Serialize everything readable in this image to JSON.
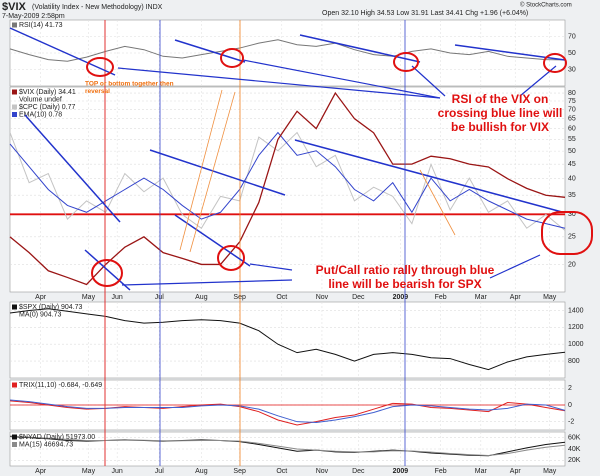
{
  "header": {
    "symbol": "$VIX",
    "description": "(Volatility Index - New Methodology) INDX",
    "date": "7-May-2009 2:58pm",
    "ohlc": "Open 32.10 High 34.53 Low 31.91 Last 34.41 Chg +1.96 (+6.04%)",
    "credit": "© StockCharts.com",
    "annotations": [
      {
        "lines": [
          "TOP or bottom together then",
          "reversal"
        ],
        "color": "#f07010"
      },
      {
        "lines": [
          "RSI of the VIX on",
          "crossing blue line will",
          "be bullish for VIX"
        ],
        "color": "#e01010"
      },
      {
        "lines": [
          "Put/Call ratio rally through blue",
          "line will be bearish for SPX"
        ],
        "color": "#e01010"
      }
    ]
  },
  "chart_data": [
    {
      "type": "line",
      "xlim": [
        0,
        29
      ],
      "ylim": [
        10,
        90
      ],
      "yticks": [
        70,
        50,
        30
      ],
      "grid": true,
      "series": [
        {
          "name": "RSI(14) 41.73",
          "color": "#777777",
          "values": [
            55,
            48,
            42,
            40,
            45,
            52,
            58,
            54,
            46,
            44,
            48,
            52,
            56,
            62,
            66,
            60,
            58,
            62,
            54,
            48,
            46,
            52,
            55,
            50,
            48,
            52,
            46,
            44,
            42,
            41.73
          ]
        }
      ]
    },
    {
      "type": "line",
      "log": true,
      "xlim": [
        0,
        29
      ],
      "ylim": [
        16,
        84
      ],
      "yticks": [
        80,
        75,
        70,
        65,
        60,
        55,
        50,
        45,
        40,
        35,
        30,
        25,
        20
      ],
      "grid": true,
      "hline": 30,
      "hline_color": "#e01010",
      "y2lim": [
        0.5,
        1.4
      ],
      "volume_label": "Volume undef",
      "xticks": [
        {
          "value": 1.6,
          "label": "Apr"
        },
        {
          "value": 4.1,
          "label": "May"
        },
        {
          "value": 5.6,
          "label": "Jun"
        },
        {
          "value": 7.8,
          "label": "Jul"
        },
        {
          "value": 10,
          "label": "Aug"
        },
        {
          "value": 12,
          "label": "Sep"
        },
        {
          "value": 14.2,
          "label": "Oct"
        },
        {
          "value": 16.3,
          "label": "Nov"
        },
        {
          "value": 18.2,
          "label": "Dec"
        },
        {
          "value": 20.4,
          "label": "2009"
        },
        {
          "value": 22.5,
          "label": "Feb"
        },
        {
          "value": 24.6,
          "label": "Mar"
        },
        {
          "value": 26.4,
          "label": "Apr"
        },
        {
          "value": 28.2,
          "label": "May"
        }
      ],
      "series": [
        {
          "name": "$CPC (Daily) 0.77",
          "color": "#c4c4c4",
          "axis": "y2",
          "values": [
            1.2,
            0.98,
            1.02,
            0.82,
            0.9,
            0.85,
            1.02,
            0.94,
            1.0,
            0.84,
            0.78,
            0.92,
            0.9,
            1.18,
            1.12,
            1.2,
            1.05,
            1.1,
            0.9,
            0.96,
            0.92,
            0.8,
            1.06,
            0.86,
            1.0,
            0.85,
            0.9,
            0.78,
            0.84,
            0.77
          ]
        },
        {
          "name": "EMA(10) 0.78",
          "color": "#3344cc",
          "axis": "y2",
          "values": [
            1.15,
            1.05,
            0.95,
            0.88,
            0.85,
            0.9,
            0.95,
            1.0,
            0.95,
            0.88,
            0.82,
            0.85,
            0.95,
            1.1,
            1.2,
            1.1,
            1.12,
            1.05,
            0.95,
            0.9,
            0.98,
            0.85,
            1.0,
            0.9,
            0.95,
            0.9,
            0.86,
            0.82,
            0.8,
            0.78
          ]
        },
        {
          "name": "$VIX (Daily) 34.41",
          "color": "#9a1515",
          "values": [
            25,
            22,
            19,
            18,
            17,
            20,
            23,
            25,
            22,
            21,
            20,
            20,
            24,
            33,
            55,
            69,
            60,
            80,
            65,
            58,
            45,
            45,
            48,
            47,
            45,
            44,
            40,
            37,
            35,
            34.41
          ]
        }
      ]
    },
    {
      "type": "line",
      "xlim": [
        0,
        29
      ],
      "ylim": [
        600,
        1500
      ],
      "yticks": [
        1400,
        1200,
        1000,
        800
      ],
      "grid": true,
      "ma_label": "MA(0) 904.73",
      "series": [
        {
          "name": "$SPX (Daily) 904.73",
          "color": "#111111",
          "values": [
            1370,
            1400,
            1420,
            1390,
            1360,
            1330,
            1280,
            1250,
            1260,
            1280,
            1290,
            1280,
            1250,
            1160,
            1000,
            900,
            940,
            880,
            800,
            880,
            900,
            880,
            840,
            830,
            760,
            700,
            790,
            850,
            880,
            904.73
          ]
        }
      ]
    },
    {
      "type": "line",
      "xlim": [
        0,
        29
      ],
      "ylim": [
        -3,
        3
      ],
      "yticks": [
        2,
        0,
        -2
      ],
      "grid": true,
      "hline": 0,
      "hline_color": "#e01010",
      "series": [
        {
          "name": "TRIX(11,10) -0.684, -0.649",
          "color": "#e02020",
          "values": [
            0.5,
            0.3,
            0,
            -0.3,
            -0.5,
            -0.4,
            -0.2,
            -0.3,
            -0.4,
            -0.2,
            0,
            0.1,
            -0.2,
            -0.8,
            -1.8,
            -2.4,
            -2.0,
            -1.5,
            -1.2,
            -0.5,
            0.2,
            0.1,
            -0.3,
            -0.4,
            -0.6,
            -0.8,
            0.3,
            0.1,
            -0.3,
            -0.684
          ]
        },
        {
          "color": "#4060d0",
          "values": [
            0.6,
            0.4,
            0.1,
            -0.2,
            -0.4,
            -0.4,
            -0.3,
            -0.3,
            -0.3,
            -0.3,
            -0.1,
            0,
            -0.1,
            -0.5,
            -1.3,
            -2.0,
            -2.1,
            -1.8,
            -1.4,
            -0.9,
            -0.2,
            0,
            -0.1,
            -0.3,
            -0.5,
            -0.6,
            -0.4,
            0.1,
            0,
            -0.649
          ]
        }
      ]
    },
    {
      "type": "line",
      "xlim": [
        0,
        29
      ],
      "ylim": [
        10000,
        70000
      ],
      "yticks": [
        {
          "value": 60000,
          "label": "60K"
        },
        {
          "value": 40000,
          "label": "40K"
        },
        {
          "value": 20000,
          "label": "20K"
        }
      ],
      "grid": true,
      "xticks": [
        {
          "value": 1.6,
          "label": "Apr"
        },
        {
          "value": 4.1,
          "label": "May"
        },
        {
          "value": 5.6,
          "label": "Jun"
        },
        {
          "value": 7.8,
          "label": "Jul"
        },
        {
          "value": 10,
          "label": "Aug"
        },
        {
          "value": 12,
          "label": "Sep"
        },
        {
          "value": 14.2,
          "label": "Oct"
        },
        {
          "value": 16.3,
          "label": "Nov"
        },
        {
          "value": 18.2,
          "label": "Dec"
        },
        {
          "value": 20.4,
          "label": "2009"
        },
        {
          "value": 22.5,
          "label": "Feb"
        },
        {
          "value": 24.6,
          "label": "Mar"
        },
        {
          "value": 26.4,
          "label": "Apr"
        },
        {
          "value": 28.2,
          "label": "May"
        }
      ],
      "series": [
        {
          "name": "$NYAD (Daily) 51973.00",
          "color": "#111111",
          "values": [
            62000,
            60000,
            58000,
            55000,
            54000,
            55000,
            56000,
            55000,
            54000,
            55000,
            56000,
            55000,
            53000,
            48000,
            42000,
            36000,
            38000,
            35000,
            34000,
            36000,
            38000,
            36000,
            33000,
            31000,
            29000,
            28000,
            35000,
            42000,
            48000,
            51973
          ]
        },
        {
          "name": "MA(15) 46694.73",
          "color": "#8a8a8a",
          "values": [
            63000,
            61000,
            59000,
            57000,
            55000,
            55000,
            55500,
            55500,
            54500,
            54500,
            55000,
            55000,
            54000,
            50000,
            45000,
            40000,
            38000,
            36000,
            35000,
            35000,
            37000,
            36500,
            34500,
            32000,
            30000,
            28500,
            32000,
            38000,
            43000,
            46694.73
          ]
        }
      ]
    }
  ]
}
